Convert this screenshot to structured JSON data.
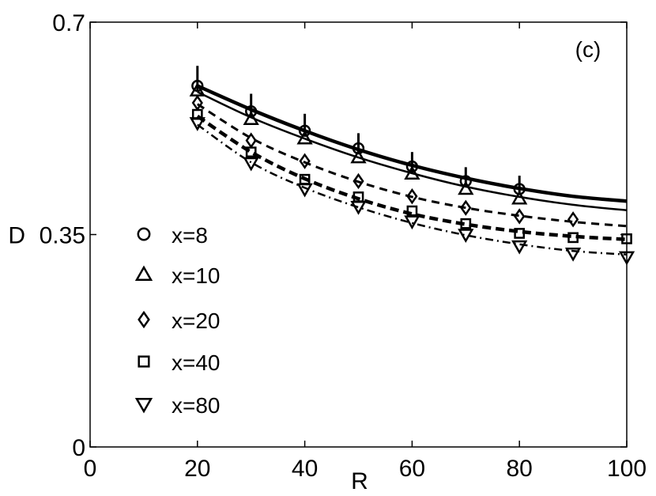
{
  "chart_data": {
    "type": "scatter",
    "panel_label": "(c)",
    "xlabel": "R",
    "ylabel": "D",
    "xlim": [
      0,
      100
    ],
    "ylim": [
      0,
      0.7
    ],
    "xticks": [
      0,
      20,
      40,
      60,
      80,
      100
    ],
    "yticks": [
      0,
      0.35,
      0.7
    ],
    "x_tick_labels": [
      "0",
      "20",
      "40",
      "60",
      "80",
      "100"
    ],
    "y_tick_labels": [
      "0",
      "0.35",
      "0.7"
    ],
    "grid": false,
    "legend_position": "left",
    "series": [
      {
        "name": "x=8",
        "marker": "circle",
        "line": "thick-solid",
        "x": [
          20,
          30,
          40,
          50,
          60,
          70,
          80
        ],
        "y": [
          0.595,
          0.553,
          0.521,
          0.492,
          0.462,
          0.438,
          0.425
        ],
        "err": [
          0.033,
          0.029,
          0.028,
          0.025,
          0.024,
          0.023,
          0.022
        ],
        "fit_x": [
          20,
          30,
          40,
          50,
          60,
          70,
          80,
          90,
          100
        ],
        "fit_y": [
          0.595,
          0.556,
          0.521,
          0.49,
          0.464,
          0.443,
          0.426,
          0.413,
          0.405
        ]
      },
      {
        "name": "x=10",
        "marker": "triangle-up",
        "line": "solid",
        "x": [
          20,
          30,
          40,
          50,
          60,
          70,
          80
        ],
        "y": [
          0.587,
          0.54,
          0.508,
          0.477,
          0.45,
          0.425,
          0.409
        ],
        "fit_x": [
          20,
          30,
          40,
          50,
          60,
          70,
          80,
          90,
          100
        ],
        "fit_y": [
          0.585,
          0.543,
          0.508,
          0.477,
          0.451,
          0.429,
          0.412,
          0.399,
          0.39
        ]
      },
      {
        "name": "x=20",
        "marker": "diamond",
        "line": "dashed",
        "x": [
          20,
          30,
          40,
          50,
          60,
          70,
          80,
          90
        ],
        "y": [
          0.567,
          0.505,
          0.471,
          0.438,
          0.413,
          0.394,
          0.38,
          0.375
        ],
        "fit_x": [
          20,
          30,
          40,
          50,
          60,
          70,
          80,
          90,
          100
        ],
        "fit_y": [
          0.565,
          0.509,
          0.469,
          0.437,
          0.412,
          0.394,
          0.381,
          0.371,
          0.364
        ]
      },
      {
        "name": "x=40",
        "marker": "square",
        "line": "thick-dashed",
        "x": [
          20,
          30,
          40,
          50,
          60,
          70,
          80,
          90,
          100
        ],
        "y": [
          0.548,
          0.486,
          0.441,
          0.412,
          0.389,
          0.368,
          0.352,
          0.345,
          0.343
        ],
        "fit_x": [
          20,
          30,
          40,
          50,
          60,
          70,
          80,
          90,
          100
        ],
        "fit_y": [
          0.545,
          0.486,
          0.442,
          0.409,
          0.384,
          0.367,
          0.355,
          0.347,
          0.342
        ]
      },
      {
        "name": "x=80",
        "marker": "triangle-down",
        "line": "dash-dot",
        "x": [
          20,
          30,
          40,
          50,
          60,
          70,
          80,
          90,
          100
        ],
        "y": [
          0.534,
          0.468,
          0.425,
          0.396,
          0.372,
          0.35,
          0.331,
          0.319,
          0.313
        ],
        "fit_x": [
          20,
          30,
          40,
          50,
          60,
          70,
          80,
          90,
          100
        ],
        "fit_y": [
          0.531,
          0.469,
          0.427,
          0.395,
          0.369,
          0.349,
          0.334,
          0.323,
          0.317
        ]
      }
    ]
  }
}
